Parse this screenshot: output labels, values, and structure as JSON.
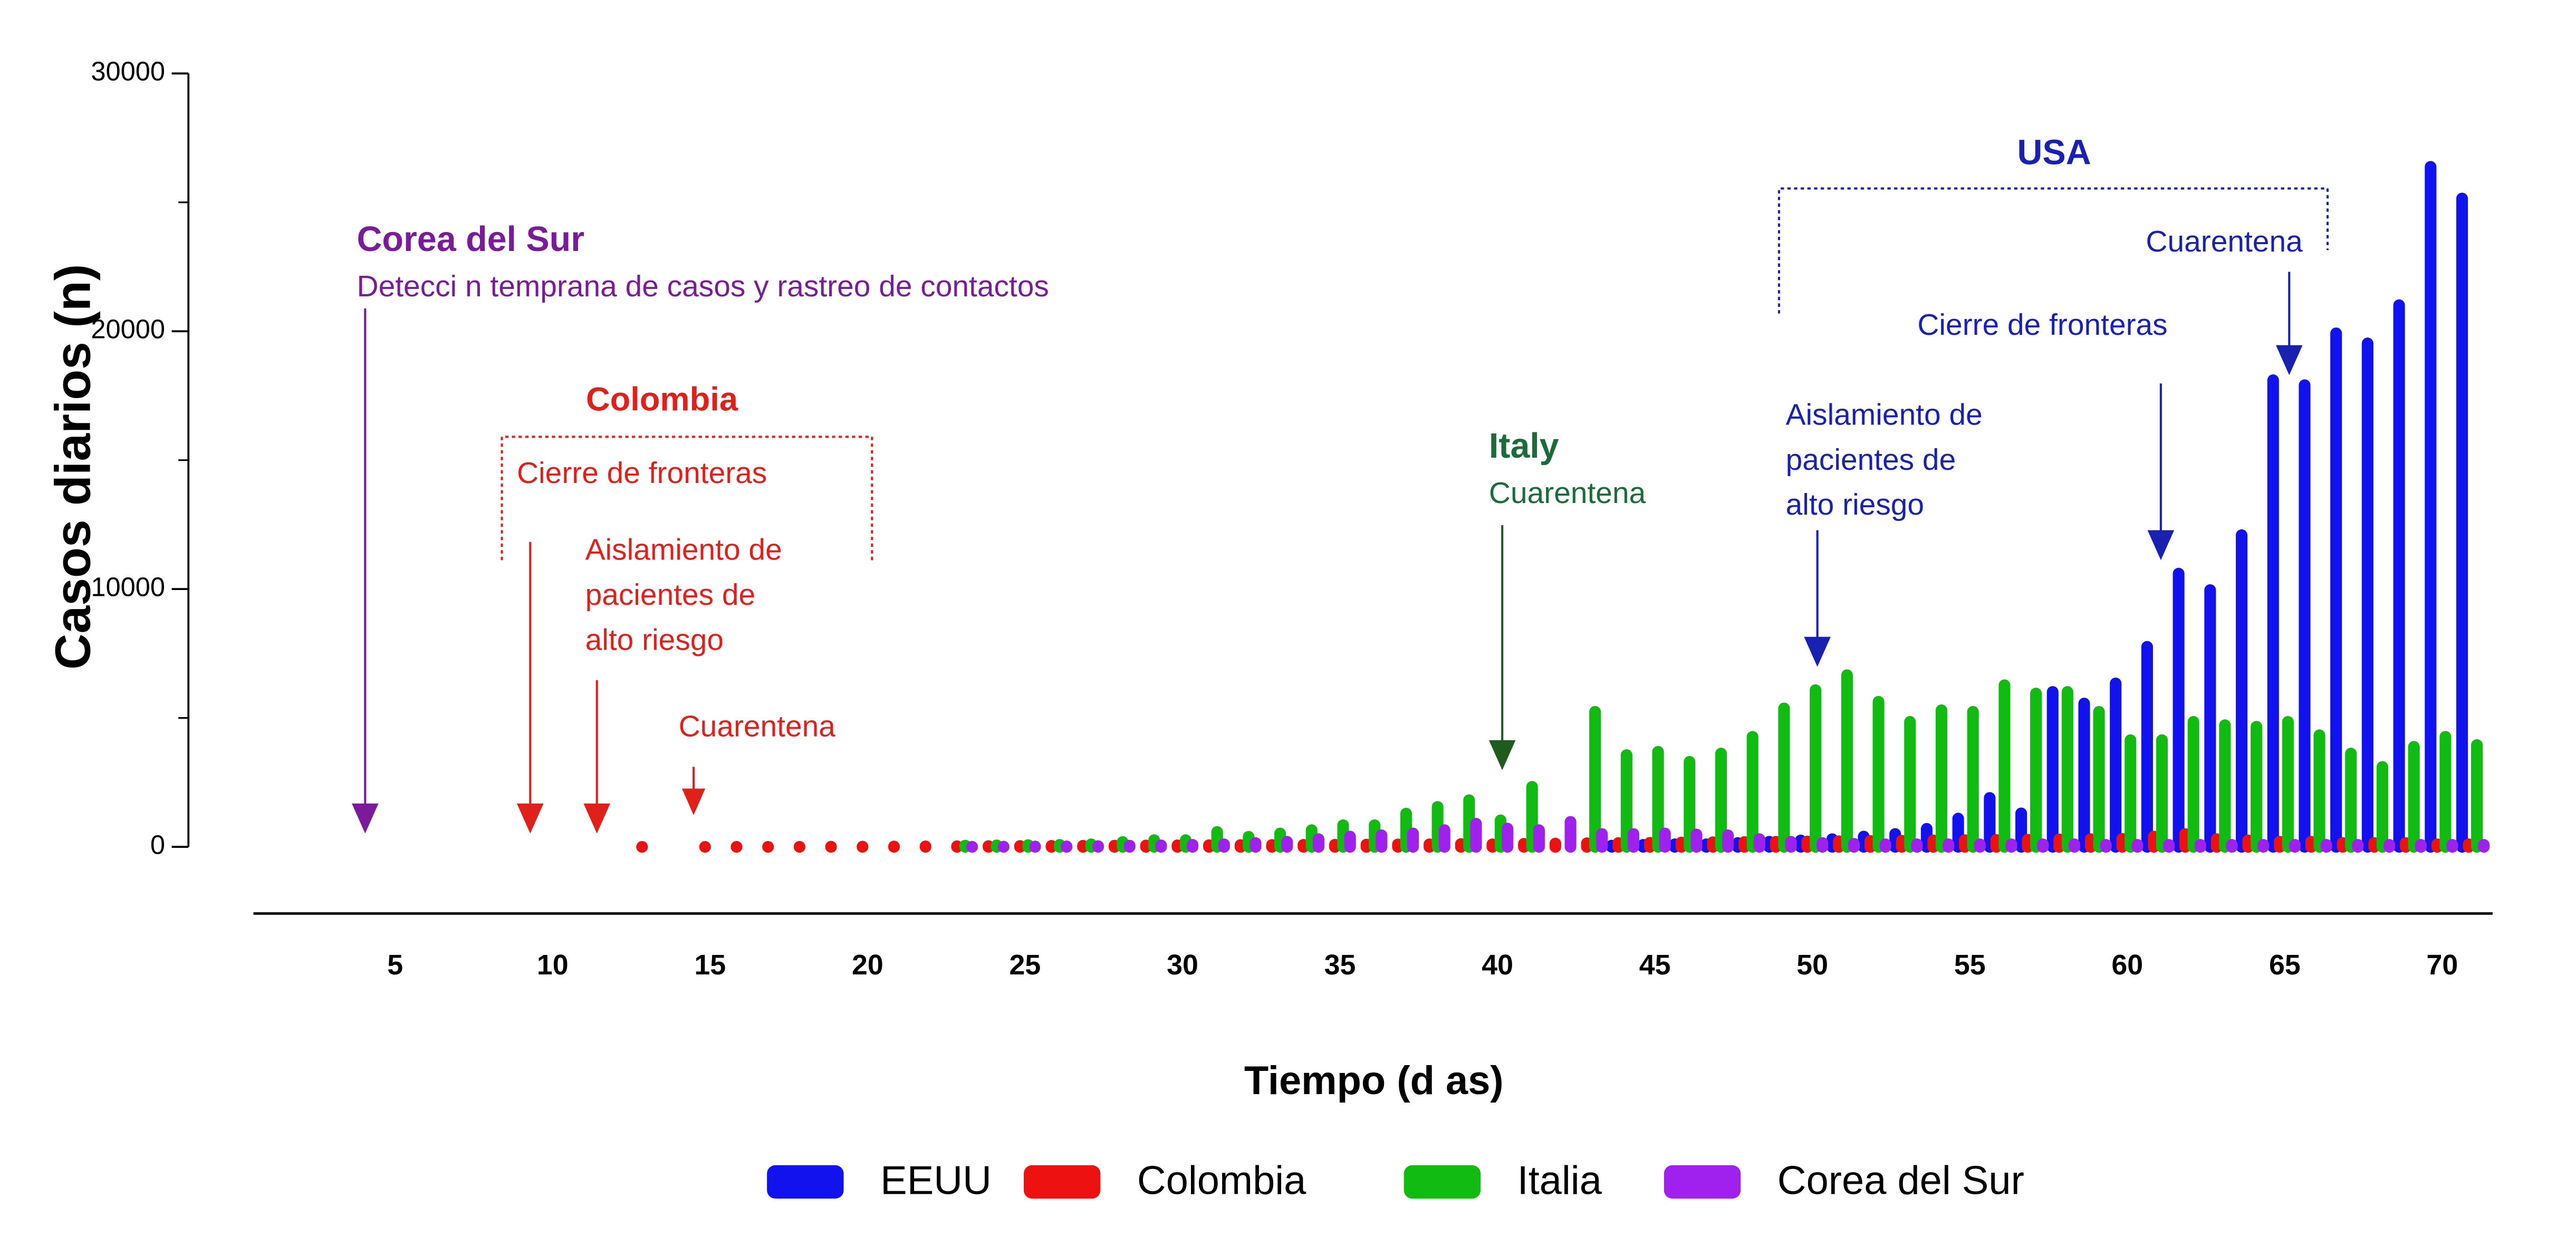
{
  "chart_data": {
    "type": "bar",
    "x_label": "Tiempo (d as)",
    "y_label": "Casos diarios (n)",
    "x": [
      13,
      14,
      15,
      16,
      17,
      18,
      19,
      20,
      21,
      22,
      23,
      24,
      25,
      26,
      27,
      28,
      29,
      30,
      31,
      32,
      33,
      34,
      35,
      36,
      37,
      38,
      39,
      40,
      41,
      42,
      43,
      44,
      45,
      46,
      47,
      48,
      49,
      50,
      51,
      52,
      53,
      54,
      55,
      56,
      57,
      58,
      59,
      60,
      61,
      62,
      63,
      64,
      65,
      66,
      67,
      68,
      69,
      70,
      71
    ],
    "xlim": [
      0.5,
      71.6
    ],
    "xticks": [
      5,
      10,
      15,
      20,
      25,
      30,
      35,
      40,
      45,
      50,
      55,
      60,
      65,
      70
    ],
    "ylim": [
      0,
      30000
    ],
    "yticks": [
      0,
      10000,
      20000,
      30000
    ],
    "yminor": [
      5000,
      15000,
      25000
    ],
    "series": [
      {
        "name": "EEUU",
        "color": "#1212ee",
        "values": [
          null,
          null,
          null,
          null,
          null,
          null,
          null,
          null,
          null,
          null,
          null,
          null,
          null,
          null,
          null,
          null,
          null,
          null,
          null,
          null,
          null,
          null,
          null,
          null,
          null,
          null,
          null,
          null,
          null,
          null,
          null,
          50,
          80,
          100,
          100,
          150,
          200,
          250,
          300,
          400,
          500,
          700,
          1100,
          1900,
          1300,
          6010,
          5560,
          6340,
          7760,
          10600,
          9960,
          12090,
          18100,
          17910,
          19920,
          19530,
          21010,
          26380,
          25150
        ]
      },
      {
        "name": "Colombia",
        "color": "#ee1111",
        "values": [
          1,
          null,
          1,
          2,
          3,
          5,
          8,
          10,
          15,
          20,
          25,
          30,
          35,
          40,
          45,
          50,
          55,
          60,
          65,
          70,
          75,
          80,
          85,
          90,
          95,
          100,
          110,
          100,
          120,
          130,
          140,
          150,
          160,
          170,
          180,
          190,
          200,
          210,
          220,
          230,
          240,
          250,
          260,
          270,
          280,
          290,
          300,
          310,
          400,
          500,
          300,
          250,
          200,
          200,
          150,
          150,
          150,
          100,
          100
        ]
      },
      {
        "name": "Italia",
        "color": "#12bb12",
        "values": [
          null,
          null,
          null,
          null,
          null,
          null,
          null,
          null,
          null,
          null,
          50,
          60,
          70,
          80,
          100,
          190,
          260,
          260,
          580,
          390,
          520,
          650,
          840,
          840,
          1290,
          1550,
          1810,
          1030,
          2330,
          null,
          5240,
          3560,
          3690,
          3300,
          3620,
          4270,
          5370,
          6080,
          6660,
          5630,
          4850,
          5300,
          5240,
          6270,
          5950,
          6010,
          5240,
          4140,
          4140,
          4850,
          4720,
          4660,
          4850,
          4330,
          3620,
          3100,
          3880,
          4270,
          3950
        ]
      },
      {
        "name": "Corea del Sur",
        "color": "#a020ee",
        "values": [
          null,
          null,
          null,
          null,
          null,
          null,
          null,
          null,
          null,
          null,
          5,
          10,
          15,
          20,
          30,
          50,
          60,
          80,
          100,
          150,
          200,
          300,
          400,
          450,
          520,
          650,
          900,
          710,
          650,
          970,
          500,
          500,
          520,
          480,
          450,
          300,
          200,
          150,
          120,
          100,
          100,
          100,
          100,
          100,
          100,
          100,
          80,
          80,
          80,
          80,
          80,
          80,
          80,
          80,
          80,
          80,
          80,
          80,
          80
        ]
      }
    ],
    "annotations": [
      "Corea del Sur",
      "Detecci n temprana de casos y rastreo de contactos",
      "Colombia",
      "Cierre de fronteras",
      "Aislamiento de",
      "pacientes de",
      "alto riesgo",
      "Cuarentena",
      "Italy",
      "Cuarentena",
      "USA",
      "Aislamiento de",
      "pacientes de",
      "alto riesgo",
      "Cierre de fronteras",
      "Cuarentena"
    ]
  }
}
